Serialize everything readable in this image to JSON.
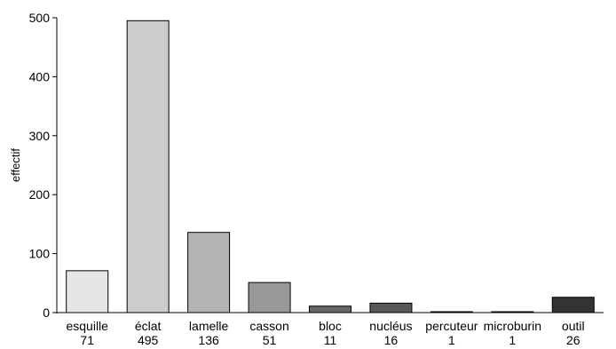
{
  "chart_data": {
    "type": "bar",
    "ylabel": "effectif",
    "xlabel": "",
    "ylim": [
      0,
      500
    ],
    "yticks": [
      0,
      100,
      200,
      300,
      400,
      500
    ],
    "grid": false,
    "legend": "none",
    "categories": [
      "esquille",
      "éclat",
      "lamelle",
      "casson",
      "bloc",
      "nucléus",
      "percuteur",
      "microburin",
      "outil"
    ],
    "values": [
      71,
      495,
      136,
      51,
      11,
      16,
      1,
      1,
      26
    ],
    "value_labels": [
      "71",
      "495",
      "136",
      "51",
      "11",
      "16",
      "1",
      "1",
      "26"
    ],
    "bar_colors": [
      "#e6e6e6",
      "#cccccc",
      "#b3b3b3",
      "#999999",
      "#666666",
      "#595959",
      "#333333",
      "#262626",
      "#333333"
    ]
  }
}
